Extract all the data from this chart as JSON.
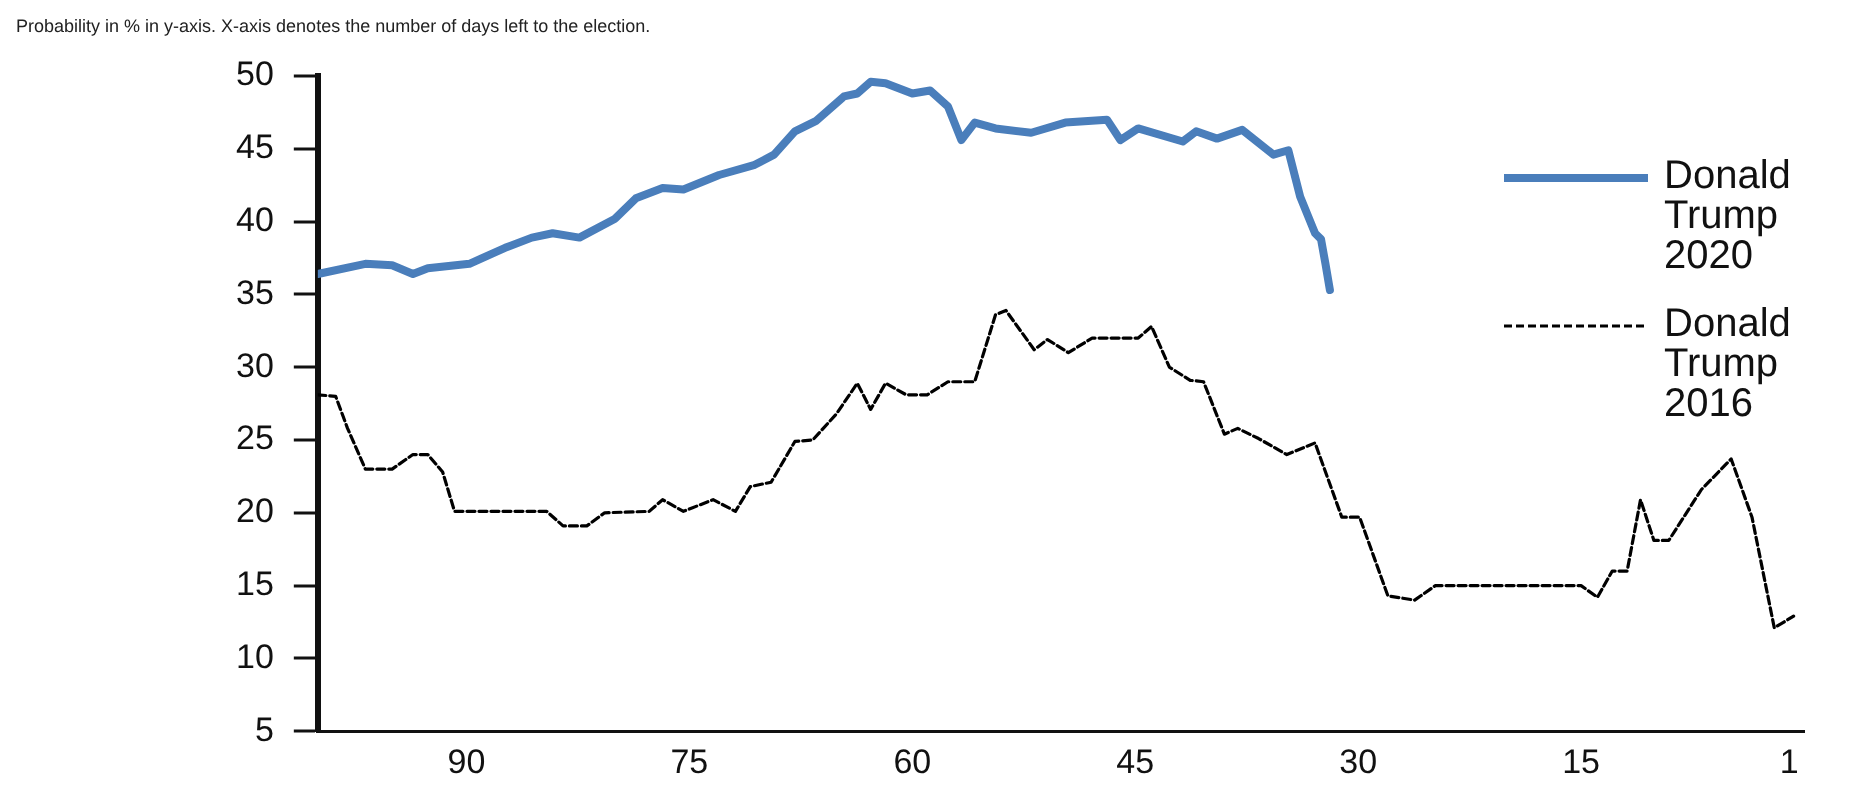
{
  "chart_data": {
    "type": "line",
    "title": "Probability in % in y-axis. X-axis denotes the number of days left to the election.",
    "xlim": [
      100,
      0
    ],
    "xticks": [
      90,
      75,
      60,
      45,
      30,
      15,
      1
    ],
    "ylim": [
      5,
      50
    ],
    "yticks": [
      5,
      10,
      15,
      20,
      25,
      30,
      35,
      40,
      45,
      50
    ],
    "grid": false,
    "legend": "top right",
    "marker": "none",
    "series": [
      {
        "name": "Donald Trump 2020",
        "color": "#4a7ebb",
        "line_style": "solid",
        "x": [
          100,
          96.8,
          95,
          93.6,
          92.6,
          89.8,
          87.4,
          85.6,
          84.2,
          82.4,
          80,
          78.6,
          76.8,
          75.4,
          73,
          70.6,
          69.3,
          67.9,
          66.5,
          64.6,
          63.7,
          62.8,
          61.8,
          60,
          58.8,
          57.6,
          56.7,
          55.8,
          54.4,
          52,
          49.7,
          46.9,
          46,
          44.8,
          41.8,
          40.9,
          39.5,
          37.8,
          35.7,
          34.7,
          33.9,
          32.9,
          32.5,
          32.2,
          31.9
        ],
        "values": [
          36.4,
          37.1,
          37,
          36.4,
          36.8,
          37.1,
          38.2,
          38.9,
          39.2,
          38.9,
          40.2,
          41.6,
          42.3,
          42.2,
          43.2,
          43.9,
          44.6,
          46.2,
          46.9,
          48.6,
          48.8,
          49.6,
          49.5,
          48.8,
          49,
          47.9,
          45.6,
          46.8,
          46.4,
          46.1,
          46.8,
          47,
          45.6,
          46.4,
          45.5,
          46.2,
          45.7,
          46.3,
          44.6,
          44.9,
          41.7,
          39.2,
          38.8,
          37.1,
          35.3
        ]
      },
      {
        "name": "Donald Trump 2016",
        "color": "#000000",
        "line_style": "dashed",
        "x": [
          100,
          98.8,
          98,
          96.8,
          95,
          93.6,
          92.6,
          91.6,
          90.8,
          84.6,
          83.5,
          81.9,
          80.7,
          77.7,
          76.8,
          75.4,
          73.4,
          71.9,
          70.9,
          69.5,
          67.9,
          66.7,
          65.1,
          63.7,
          62.8,
          61.8,
          60.4,
          59,
          57.6,
          55.8,
          54.4,
          53.7,
          51.8,
          50.9,
          49.5,
          47.9,
          44.8,
          43.9,
          42.7,
          41.3,
          40.4,
          39,
          38.1,
          36.7,
          34.8,
          32.9,
          31.1,
          29.9,
          28,
          26.2,
          24.8,
          15,
          13.9,
          12.9,
          11.9,
          11,
          10.1,
          9.1,
          6.9,
          4.9,
          3.5,
          2,
          0.7
        ],
        "values": [
          28.1,
          28,
          25.8,
          23,
          23,
          24,
          24,
          22.8,
          20.1,
          20.1,
          19.1,
          19.1,
          20,
          20.1,
          20.9,
          20.1,
          20.9,
          20.1,
          21.8,
          22.1,
          24.9,
          25,
          26.8,
          28.9,
          27.1,
          28.9,
          28.1,
          28.1,
          29,
          29,
          33.6,
          33.9,
          31.2,
          31.9,
          31,
          32,
          32,
          32.8,
          30,
          29.1,
          29,
          25.4,
          25.8,
          25.1,
          24,
          24.8,
          19.7,
          19.7,
          14.3,
          14,
          15,
          15,
          14.2,
          16,
          16,
          20.9,
          18.1,
          18.1,
          21.6,
          23.7,
          19.7,
          12.1,
          12.9
        ]
      }
    ]
  }
}
